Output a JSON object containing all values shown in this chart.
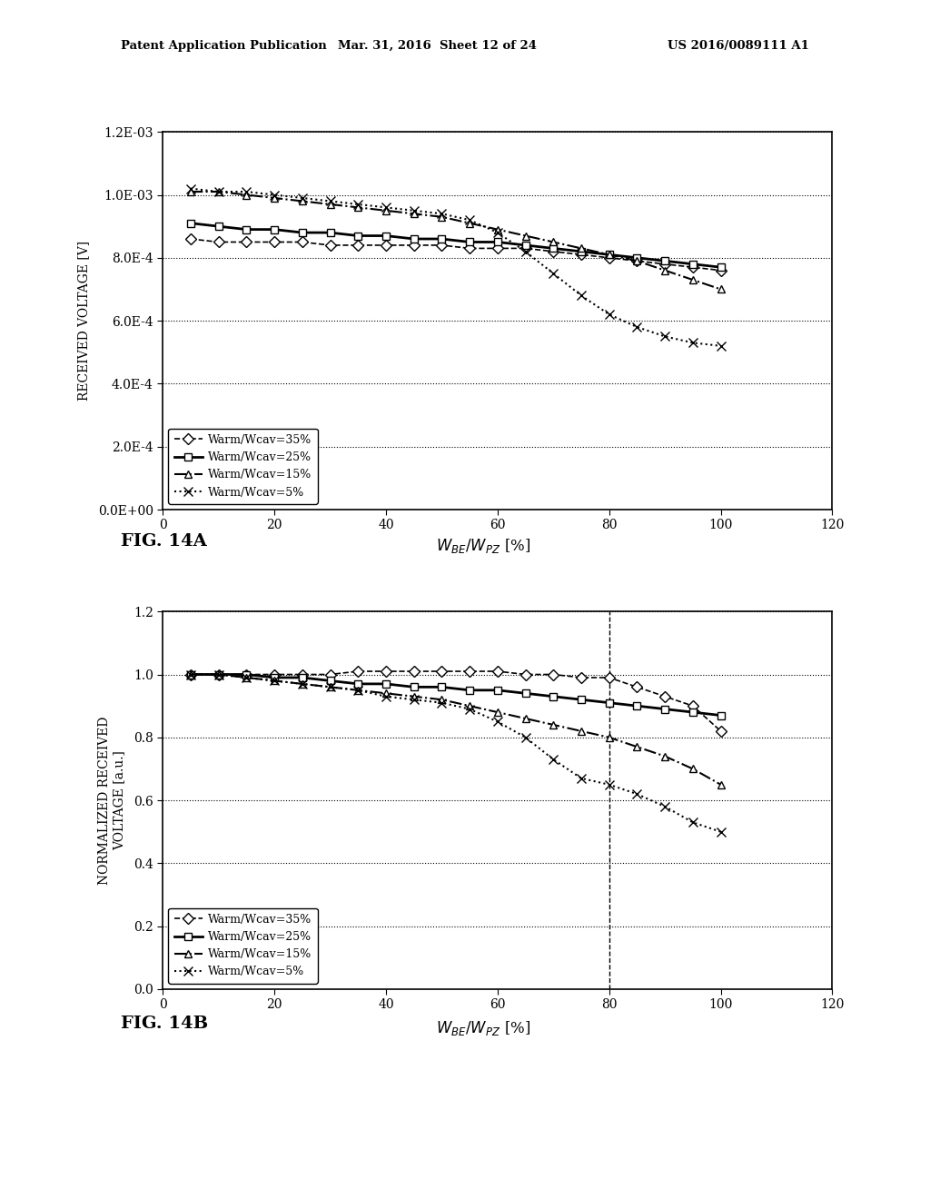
{
  "header_left": "Patent Application Publication",
  "header_mid": "Mar. 31, 2016  Sheet 12 of 24",
  "header_right": "US 2016/0089111 A1",
  "fig14a": {
    "fig_label": "FIG. 14A",
    "ylabel": "RECEIVED VOLTAGE [V]",
    "xlim": [
      0,
      120
    ],
    "ylim": [
      0.0,
      0.0012
    ],
    "yticks": [
      0.0,
      0.0002,
      0.0004,
      0.0006,
      0.0008,
      0.001,
      0.0012
    ],
    "ytick_labels": [
      "0.0E+00",
      "2.0E-4",
      "4.0E-4",
      "6.0E-4",
      "8.0E-4",
      "1.0E-03",
      "1.2E-03"
    ],
    "xticks": [
      0,
      20,
      40,
      60,
      80,
      100,
      120
    ],
    "series": [
      {
        "label": "Warm/Wcav=35%",
        "x": [
          5,
          10,
          15,
          20,
          25,
          30,
          35,
          40,
          45,
          50,
          55,
          60,
          65,
          70,
          75,
          80,
          85,
          90,
          95,
          100
        ],
        "y": [
          0.00086,
          0.00085,
          0.00085,
          0.00085,
          0.00085,
          0.00084,
          0.00084,
          0.00084,
          0.00084,
          0.00084,
          0.00083,
          0.00083,
          0.00083,
          0.00082,
          0.00081,
          0.0008,
          0.00079,
          0.00078,
          0.00077,
          0.00076
        ],
        "linestyle": "--",
        "marker": "D",
        "linewidth": 1.2,
        "markersize": 6,
        "markerfacecolor": "white"
      },
      {
        "label": "Warm/Wcav=25%",
        "x": [
          5,
          10,
          15,
          20,
          25,
          30,
          35,
          40,
          45,
          50,
          55,
          60,
          65,
          70,
          75,
          80,
          85,
          90,
          95,
          100
        ],
        "y": [
          0.00091,
          0.0009,
          0.00089,
          0.00089,
          0.00088,
          0.00088,
          0.00087,
          0.00087,
          0.00086,
          0.00086,
          0.00085,
          0.00085,
          0.00084,
          0.00083,
          0.00082,
          0.00081,
          0.0008,
          0.00079,
          0.00078,
          0.00077
        ],
        "linestyle": "-",
        "marker": "s",
        "linewidth": 2.0,
        "markersize": 6,
        "markerfacecolor": "white"
      },
      {
        "label": "Warm/Wcav=15%",
        "x": [
          5,
          10,
          15,
          20,
          25,
          30,
          35,
          40,
          45,
          50,
          55,
          60,
          65,
          70,
          75,
          80,
          85,
          90,
          95,
          100
        ],
        "y": [
          0.00101,
          0.00101,
          0.001,
          0.00099,
          0.00098,
          0.00097,
          0.00096,
          0.00095,
          0.00094,
          0.00093,
          0.00091,
          0.00089,
          0.00087,
          0.00085,
          0.00083,
          0.00081,
          0.00079,
          0.00076,
          0.00073,
          0.0007
        ],
        "linestyle": "-.",
        "marker": "^",
        "linewidth": 1.5,
        "markersize": 6,
        "markerfacecolor": "white"
      },
      {
        "label": "Warm/Wcav=5%",
        "x": [
          5,
          10,
          15,
          20,
          25,
          30,
          35,
          40,
          45,
          50,
          55,
          60,
          65,
          70,
          75,
          80,
          85,
          90,
          95,
          100
        ],
        "y": [
          0.00102,
          0.00101,
          0.00101,
          0.001,
          0.00099,
          0.00098,
          0.00097,
          0.00096,
          0.00095,
          0.00094,
          0.00092,
          0.00088,
          0.00082,
          0.00075,
          0.00068,
          0.00062,
          0.00058,
          0.00055,
          0.00053,
          0.00052
        ],
        "linestyle": ":",
        "marker": "x",
        "linewidth": 1.5,
        "markersize": 7,
        "markerfacecolor": "black"
      }
    ]
  },
  "fig14b": {
    "fig_label": "FIG. 14B",
    "ylabel1": "NORMALIZED RECEIVED",
    "ylabel2": "VOLTAGE [a.u.]",
    "xlim": [
      0,
      120
    ],
    "ylim": [
      0.0,
      1.2
    ],
    "yticks": [
      0.0,
      0.2,
      0.4,
      0.6,
      0.8,
      1.0,
      1.2
    ],
    "ytick_labels": [
      "0.0",
      "0.2",
      "0.4",
      "0.6",
      "0.8",
      "1.0",
      "1.2"
    ],
    "xticks": [
      0,
      20,
      40,
      60,
      80,
      100,
      120
    ],
    "vline_x": 80,
    "series": [
      {
        "label": "Warm/Wcav=35%",
        "x": [
          5,
          10,
          15,
          20,
          25,
          30,
          35,
          40,
          45,
          50,
          55,
          60,
          65,
          70,
          75,
          80,
          85,
          90,
          95,
          100
        ],
        "y": [
          1.0,
          1.0,
          1.0,
          1.0,
          1.0,
          1.0,
          1.01,
          1.01,
          1.01,
          1.01,
          1.01,
          1.01,
          1.0,
          1.0,
          0.99,
          0.99,
          0.96,
          0.93,
          0.9,
          0.82
        ],
        "linestyle": "--",
        "marker": "D",
        "linewidth": 1.2,
        "markersize": 6,
        "markerfacecolor": "white"
      },
      {
        "label": "Warm/Wcav=25%",
        "x": [
          5,
          10,
          15,
          20,
          25,
          30,
          35,
          40,
          45,
          50,
          55,
          60,
          65,
          70,
          75,
          80,
          85,
          90,
          95,
          100
        ],
        "y": [
          1.0,
          1.0,
          1.0,
          0.99,
          0.99,
          0.98,
          0.97,
          0.97,
          0.96,
          0.96,
          0.95,
          0.95,
          0.94,
          0.93,
          0.92,
          0.91,
          0.9,
          0.89,
          0.88,
          0.87
        ],
        "linestyle": "-",
        "marker": "s",
        "linewidth": 2.0,
        "markersize": 6,
        "markerfacecolor": "white"
      },
      {
        "label": "Warm/Wcav=15%",
        "x": [
          5,
          10,
          15,
          20,
          25,
          30,
          35,
          40,
          45,
          50,
          55,
          60,
          65,
          70,
          75,
          80,
          85,
          90,
          95,
          100
        ],
        "y": [
          1.0,
          1.0,
          0.99,
          0.98,
          0.97,
          0.96,
          0.95,
          0.94,
          0.93,
          0.92,
          0.9,
          0.88,
          0.86,
          0.84,
          0.82,
          0.8,
          0.77,
          0.74,
          0.7,
          0.65
        ],
        "linestyle": "-.",
        "marker": "^",
        "linewidth": 1.5,
        "markersize": 6,
        "markerfacecolor": "white"
      },
      {
        "label": "Warm/Wcav=5%",
        "x": [
          5,
          10,
          15,
          20,
          25,
          30,
          35,
          40,
          45,
          50,
          55,
          60,
          65,
          70,
          75,
          80,
          85,
          90,
          95,
          100
        ],
        "y": [
          1.0,
          1.0,
          0.99,
          0.98,
          0.97,
          0.96,
          0.95,
          0.93,
          0.92,
          0.91,
          0.89,
          0.85,
          0.8,
          0.73,
          0.67,
          0.65,
          0.62,
          0.58,
          0.53,
          0.5
        ],
        "linestyle": ":",
        "marker": "x",
        "linewidth": 1.5,
        "markersize": 7,
        "markerfacecolor": "black"
      }
    ]
  }
}
